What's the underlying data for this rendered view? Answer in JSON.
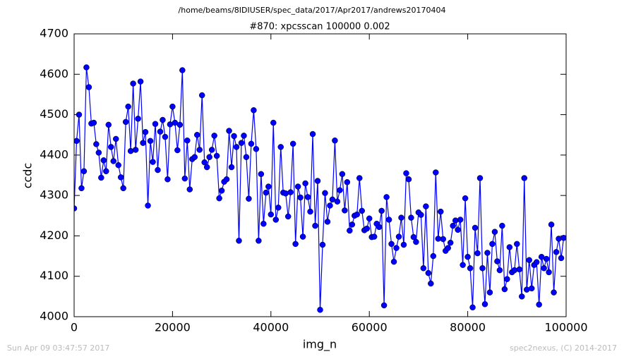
{
  "header": "/home/beams/8IDIUSER/spec_data/2017/Apr2017/andrews20170404",
  "footer": {
    "left": "Sun Apr 09 03:47:57 2017",
    "right": "spec2nexus, (C) 2014-2017"
  },
  "chart_data": {
    "type": "line",
    "title": "#870: xpcsscan 100000 0.002",
    "xlabel": "img_n",
    "ylabel": "ccdc",
    "color": "#0000ff",
    "markers": true,
    "grid": false,
    "xlim": [
      0,
      100000
    ],
    "xticks": [
      0,
      20000,
      40000,
      60000,
      80000,
      100000
    ],
    "ylim": [
      4000,
      4700
    ],
    "yticks": [
      4000,
      4100,
      4200,
      4300,
      4400,
      4500,
      4600,
      4700
    ],
    "x": [
      0,
      500,
      1000,
      1500,
      2000,
      2500,
      3000,
      3500,
      4000,
      4500,
      5000,
      5500,
      6000,
      6500,
      7000,
      7500,
      8000,
      8500,
      9000,
      9500,
      10000,
      10500,
      11000,
      11500,
      12000,
      12500,
      13000,
      13500,
      14000,
      14500,
      15000,
      15500,
      16000,
      16500,
      17000,
      17500,
      18000,
      18500,
      19000,
      19500,
      20000,
      20500,
      21000,
      21500,
      22000,
      22500,
      23000,
      23500,
      24000,
      24500,
      25000,
      25500,
      26000,
      26500,
      27000,
      27500,
      28000,
      28500,
      29000,
      29500,
      30000,
      30500,
      31000,
      31500,
      32000,
      32500,
      33000,
      33500,
      34000,
      34500,
      35000,
      35500,
      36000,
      36500,
      37000,
      37500,
      38000,
      38500,
      39000,
      39500,
      40000,
      40500,
      41000,
      41500,
      42000,
      42500,
      43000,
      43500,
      44000,
      44500,
      45000,
      45500,
      46000,
      46500,
      47000,
      47500,
      48000,
      48500,
      49000,
      49500,
      50000,
      50500,
      51000,
      51500,
      52000,
      52500,
      53000,
      53500,
      54000,
      54500,
      55000,
      55500,
      56000,
      56500,
      57000,
      57500,
      58000,
      58500,
      59000,
      59500,
      60000,
      60500,
      61000,
      61500,
      62000,
      62500,
      63000,
      63500,
      64000,
      64500,
      65000,
      65500,
      66000,
      66500,
      67000,
      67500,
      68000,
      68500,
      69000,
      69500,
      70000,
      70500,
      71000,
      71500,
      72000,
      72500,
      73000,
      73500,
      74000,
      74500,
      75000,
      75500,
      76000,
      76500,
      77000,
      77500,
      78000,
      78500,
      79000,
      79500,
      80000,
      80500,
      81000,
      81500,
      82000,
      82500,
      83000,
      83500,
      84000,
      84500,
      85000,
      85500,
      86000,
      86500,
      87000,
      87500,
      88000,
      88500,
      89000,
      89500,
      90000,
      90500,
      91000,
      91500,
      92000,
      92500,
      93000,
      93500,
      94000,
      94500,
      95000,
      95500,
      96000,
      96500,
      97000,
      97500,
      98000,
      98500,
      99000,
      99500
    ],
    "values": [
      4268,
      4435,
      4500,
      4318,
      4360,
      4617,
      4568,
      4478,
      4480,
      4427,
      4406,
      4344,
      4387,
      4360,
      4475,
      4420,
      4385,
      4440,
      4375,
      4345,
      4318,
      4482,
      4520,
      4410,
      4577,
      4413,
      4490,
      4582,
      4430,
      4457,
      4275,
      4435,
      4383,
      4477,
      4363,
      4458,
      4487,
      4445,
      4340,
      4476,
      4520,
      4480,
      4412,
      4475,
      4610,
      4342,
      4436,
      4315,
      4390,
      4395,
      4450,
      4413,
      4548,
      4382,
      4370,
      4395,
      4413,
      4448,
      4398,
      4293,
      4312,
      4334,
      4340,
      4460,
      4370,
      4447,
      4420,
      4188,
      4430,
      4448,
      4395,
      4292,
      4428,
      4511,
      4415,
      4188,
      4353,
      4230,
      4307,
      4322,
      4253,
      4480,
      4240,
      4270,
      4420,
      4307,
      4305,
      4248,
      4308,
      4428,
      4180,
      4322,
      4295,
      4198,
      4330,
      4296,
      4260,
      4452,
      4225,
      4336,
      4017,
      4178,
      4306,
      4235,
      4275,
      4290,
      4436,
      4285,
      4313,
      4353,
      4263,
      4333,
      4213,
      4228,
      4250,
      4253,
      4343,
      4262,
      4214,
      4218,
      4243,
      4197,
      4198,
      4230,
      4222,
      4262,
      4028,
      4296,
      4240,
      4180,
      4136,
      4170,
      4198,
      4245,
      4178,
      4355,
      4340,
      4245,
      4197,
      4185,
      4258,
      4252,
      4120,
      4273,
      4108,
      4082,
      4150,
      4357,
      4193,
      4260,
      4192,
      4163,
      4170,
      4183,
      4225,
      4238,
      4215,
      4240,
      4128,
      4293,
      4148,
      4120,
      4023,
      4220,
      4157,
      4343,
      4120,
      4031,
      4158,
      4060,
      4180,
      4210,
      4137,
      4115,
      4225,
      4068,
      4093,
      4172,
      4110,
      4115,
      4180,
      4117,
      4050,
      4343,
      4067,
      4140,
      4070,
      4128,
      4135,
      4030,
      4148,
      4120,
      4143,
      4110,
      4228,
      4060,
      4160,
      4193,
      4145,
      4195
    ]
  }
}
